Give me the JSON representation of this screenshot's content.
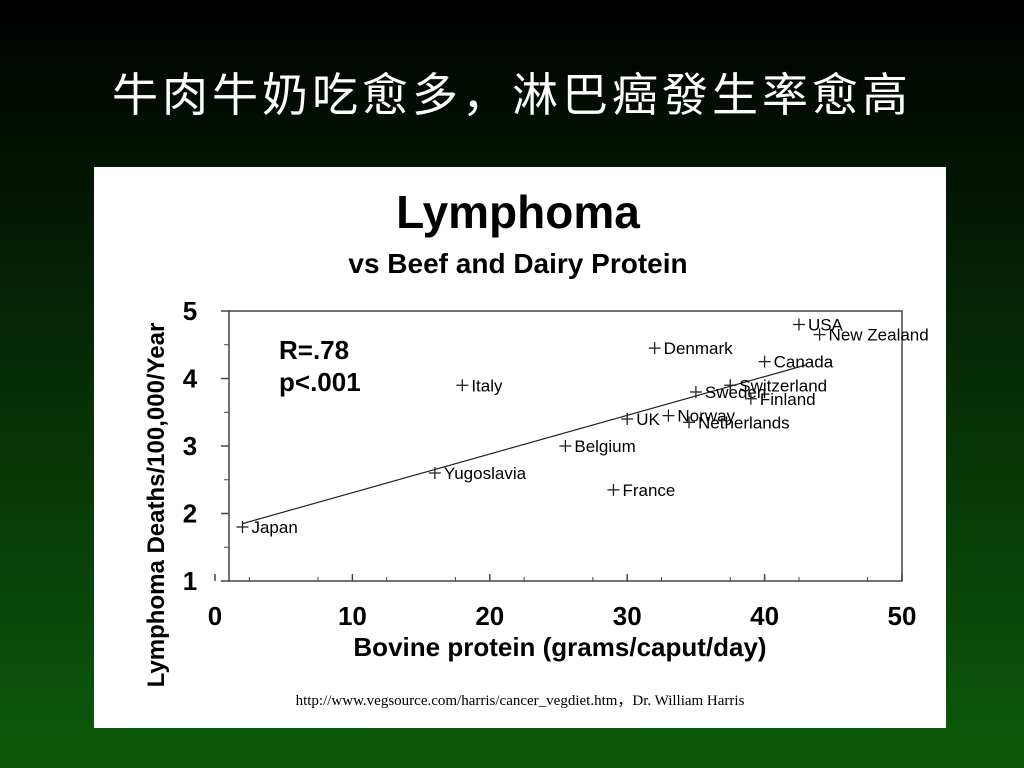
{
  "slide": {
    "title": "牛肉牛奶吃愈多，淋巴癌發生率愈高",
    "source": "http://www.vegsource.com/harris/cancer_vegdiet.htm，Dr. William Harris"
  },
  "colors": {
    "marks": "#222222",
    "text": "#000000"
  },
  "chart_data": {
    "type": "scatter",
    "title": "Lymphoma",
    "subtitle": "vs Beef and Dairy Protein",
    "xlabel": "Bovine protein (grams/caput/day)",
    "ylabel": "Lymphoma Deaths/100,000/Year",
    "xlim": [
      0,
      50
    ],
    "ylim": [
      1,
      5
    ],
    "xticks": [
      0,
      10,
      20,
      30,
      40,
      50
    ],
    "yticks": [
      1,
      2,
      3,
      4,
      5
    ],
    "grid": false,
    "annotations": [
      "R=.78",
      "p<.001"
    ],
    "trendline": {
      "x": [
        2,
        43
      ],
      "y": [
        1.85,
        4.2
      ]
    },
    "points": [
      {
        "label": "Japan",
        "x": 2,
        "y": 1.8
      },
      {
        "label": "Yugoslavia",
        "x": 16,
        "y": 2.6
      },
      {
        "label": "Italy",
        "x": 18,
        "y": 3.9
      },
      {
        "label": "Belgium",
        "x": 25.5,
        "y": 3.0
      },
      {
        "label": "France",
        "x": 29,
        "y": 2.35
      },
      {
        "label": "UK",
        "x": 30,
        "y": 3.4
      },
      {
        "label": "Denmark",
        "x": 32,
        "y": 4.45
      },
      {
        "label": "Norway",
        "x": 33,
        "y": 3.45
      },
      {
        "label": "Netherlands",
        "x": 34.5,
        "y": 3.35
      },
      {
        "label": "Sweden",
        "x": 35,
        "y": 3.8
      },
      {
        "label": "Switzerland",
        "x": 37.5,
        "y": 3.9
      },
      {
        "label": "Finland",
        "x": 39,
        "y": 3.7
      },
      {
        "label": "Canada",
        "x": 40,
        "y": 4.25
      },
      {
        "label": "USA",
        "x": 42.5,
        "y": 4.8
      },
      {
        "label": "New Zealand",
        "x": 44,
        "y": 4.65
      }
    ]
  }
}
